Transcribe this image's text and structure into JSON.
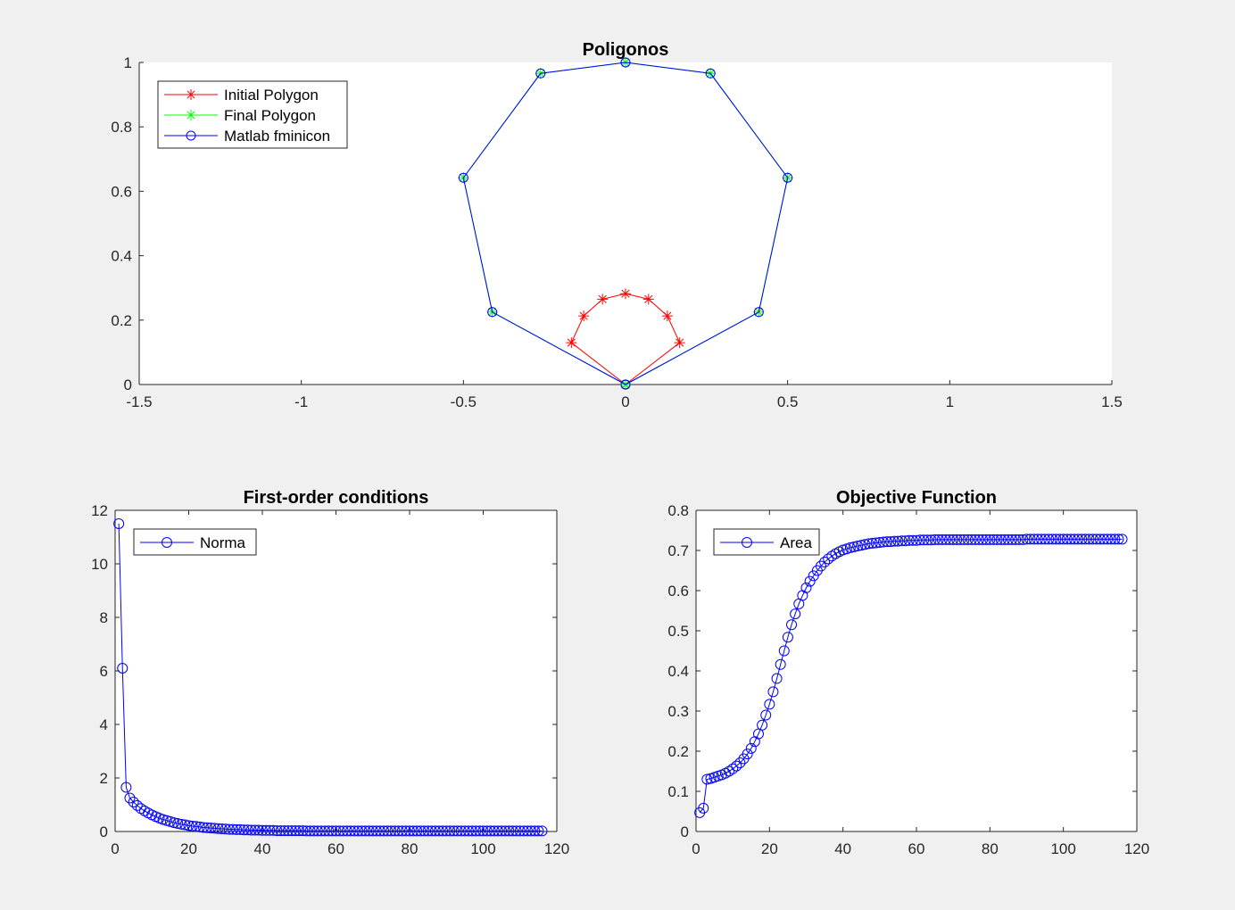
{
  "chart_data": [
    {
      "type": "line",
      "title": "Poligonos",
      "xlim": [
        -1.5,
        1.5
      ],
      "ylim": [
        0,
        1
      ],
      "xticks": [
        "-1.5",
        "-1",
        "-0.5",
        "0",
        "0.5",
        "1",
        "1.5"
      ],
      "yticks": [
        "0",
        "0.2",
        "0.4",
        "0.6",
        "0.8",
        "1"
      ],
      "legend_position": "top-left",
      "series": [
        {
          "name": "Initial Polygon",
          "color": "#ff0000",
          "marker": "asterisk",
          "x": [
            0,
            0.167,
            0.129,
            0.071,
            0,
            -0.071,
            -0.129,
            -0.167,
            0
          ],
          "y": [
            0,
            0.13,
            0.213,
            0.265,
            0.282,
            0.265,
            0.213,
            0.13,
            0
          ]
        },
        {
          "name": "Final Polygon",
          "color": "#00ff00",
          "marker": "asterisk",
          "x": [
            0,
            0.411,
            0.5,
            0.262,
            0,
            -0.262,
            -0.5,
            -0.411,
            0
          ],
          "y": [
            0,
            0.225,
            0.642,
            0.966,
            1.0,
            0.966,
            0.642,
            0.225,
            0
          ]
        },
        {
          "name": "Matlab fminicon",
          "color": "#0000ff",
          "marker": "circle",
          "x": [
            0,
            0.411,
            0.5,
            0.262,
            0,
            -0.262,
            -0.5,
            -0.411,
            0
          ],
          "y": [
            0,
            0.225,
            0.642,
            0.966,
            1.0,
            0.966,
            0.642,
            0.225,
            0
          ]
        }
      ]
    },
    {
      "type": "line",
      "title": "First-order conditions",
      "xlim": [
        0,
        120
      ],
      "ylim": [
        0,
        12
      ],
      "xticks": [
        "0",
        "20",
        "40",
        "60",
        "80",
        "100",
        "120"
      ],
      "yticks": [
        "0",
        "2",
        "4",
        "6",
        "8",
        "10",
        "12"
      ],
      "legend_position": "top-left",
      "series": [
        {
          "name": "Norma",
          "color": "#0000ff",
          "marker": "circle",
          "x": [
            1,
            2,
            3,
            4,
            5,
            6,
            7,
            8,
            9,
            10,
            11,
            12,
            13,
            14,
            15,
            16,
            17,
            18,
            19,
            20,
            21,
            22,
            23,
            24,
            25,
            26,
            27,
            28,
            29,
            30,
            31,
            32,
            33,
            34,
            35,
            36,
            37,
            38,
            39,
            40,
            41,
            42,
            43,
            44,
            45,
            46,
            47,
            48,
            49,
            50,
            51,
            52,
            53,
            54,
            55,
            56,
            57,
            58,
            59,
            60,
            61,
            62,
            63,
            64,
            65,
            66,
            67,
            68,
            69,
            70,
            71,
            72,
            73,
            74,
            75,
            76,
            77,
            78,
            79,
            80,
            81,
            82,
            83,
            84,
            85,
            86,
            87,
            88,
            89,
            90,
            91,
            92,
            93,
            94,
            95,
            96,
            97,
            98,
            99,
            100,
            101,
            102,
            103,
            104,
            105,
            106,
            107,
            108,
            109,
            110,
            111,
            112,
            113,
            114,
            115,
            116
          ],
          "y": [
            11.5,
            6.1,
            1.65,
            1.25,
            1.1,
            0.97,
            0.86,
            0.77,
            0.69,
            0.62,
            0.56,
            0.5,
            0.45,
            0.41,
            0.37,
            0.33,
            0.3,
            0.27,
            0.25,
            0.22,
            0.2,
            0.19,
            0.17,
            0.15,
            0.14,
            0.13,
            0.12,
            0.11,
            0.1,
            0.09,
            0.08,
            0.08,
            0.07,
            0.07,
            0.06,
            0.06,
            0.05,
            0.05,
            0.05,
            0.04,
            0.04,
            0.04,
            0.04,
            0.03,
            0.03,
            0.03,
            0.03,
            0.03,
            0.03,
            0.03,
            0.03,
            0.02,
            0.02,
            0.02,
            0.02,
            0.02,
            0.02,
            0.02,
            0.02,
            0.02,
            0.02,
            0.02,
            0.02,
            0.02,
            0.02,
            0.02,
            0.02,
            0.02,
            0.02,
            0.02,
            0.02,
            0.02,
            0.02,
            0.02,
            0.02,
            0.02,
            0.02,
            0.02,
            0.02,
            0.02,
            0.02,
            0.02,
            0.02,
            0.02,
            0.02,
            0.02,
            0.02,
            0.02,
            0.02,
            0.02,
            0.02,
            0.02,
            0.02,
            0.02,
            0.02,
            0.02,
            0.02,
            0.02,
            0.02,
            0.02,
            0.02,
            0.02,
            0.02,
            0.02,
            0.02,
            0.02,
            0.02,
            0.02,
            0.02,
            0.02,
            0.02,
            0.02,
            0.02,
            0.02,
            0.02,
            0.02
          ]
        }
      ]
    },
    {
      "type": "line",
      "title": "Objective Function",
      "xlim": [
        0,
        120
      ],
      "ylim": [
        0,
        0.8
      ],
      "xticks": [
        "0",
        "20",
        "40",
        "60",
        "80",
        "100",
        "120"
      ],
      "yticks": [
        "0",
        "0.1",
        "0.2",
        "0.3",
        "0.4",
        "0.5",
        "0.6",
        "0.7",
        "0.8"
      ],
      "legend_position": "top-left",
      "series": [
        {
          "name": "Area",
          "color": "#0000ff",
          "marker": "circle",
          "x": [
            1,
            2,
            3,
            4,
            5,
            6,
            7,
            8,
            9,
            10,
            11,
            12,
            13,
            14,
            15,
            16,
            17,
            18,
            19,
            20,
            21,
            22,
            23,
            24,
            25,
            26,
            27,
            28,
            29,
            30,
            31,
            32,
            33,
            34,
            35,
            36,
            37,
            38,
            39,
            40,
            41,
            42,
            43,
            44,
            45,
            46,
            47,
            48,
            49,
            50,
            51,
            52,
            53,
            54,
            55,
            56,
            57,
            58,
            59,
            60,
            61,
            62,
            63,
            64,
            65,
            66,
            67,
            68,
            69,
            70,
            71,
            72,
            73,
            74,
            75,
            76,
            77,
            78,
            79,
            80,
            81,
            82,
            83,
            84,
            85,
            86,
            87,
            88,
            89,
            90,
            91,
            92,
            93,
            94,
            95,
            96,
            97,
            98,
            99,
            100,
            101,
            102,
            103,
            104,
            105,
            106,
            107,
            108,
            109,
            110,
            111,
            112,
            113,
            114,
            115,
            116
          ],
          "y": [
            0.047,
            0.058,
            0.13,
            0.132,
            0.135,
            0.138,
            0.141,
            0.145,
            0.15,
            0.156,
            0.163,
            0.171,
            0.181,
            0.193,
            0.207,
            0.224,
            0.243,
            0.265,
            0.29,
            0.317,
            0.348,
            0.381,
            0.416,
            0.45,
            0.484,
            0.515,
            0.542,
            0.567,
            0.588,
            0.607,
            0.623,
            0.637,
            0.65,
            0.661,
            0.671,
            0.679,
            0.686,
            0.692,
            0.697,
            0.701,
            0.704,
            0.707,
            0.709,
            0.711,
            0.713,
            0.715,
            0.717,
            0.718,
            0.719,
            0.72,
            0.721,
            0.722,
            0.722,
            0.723,
            0.723,
            0.724,
            0.724,
            0.725,
            0.725,
            0.725,
            0.726,
            0.726,
            0.726,
            0.726,
            0.727,
            0.727,
            0.727,
            0.727,
            0.727,
            0.727,
            0.727,
            0.727,
            0.727,
            0.727,
            0.727,
            0.727,
            0.727,
            0.727,
            0.727,
            0.727,
            0.727,
            0.727,
            0.727,
            0.727,
            0.727,
            0.727,
            0.727,
            0.727,
            0.727,
            0.728,
            0.728,
            0.728,
            0.728,
            0.728,
            0.728,
            0.728,
            0.728,
            0.728,
            0.728,
            0.728,
            0.728,
            0.728,
            0.728,
            0.728,
            0.728,
            0.728,
            0.728,
            0.728,
            0.728,
            0.728,
            0.728,
            0.728,
            0.728,
            0.728,
            0.728,
            0.728
          ]
        }
      ]
    }
  ]
}
